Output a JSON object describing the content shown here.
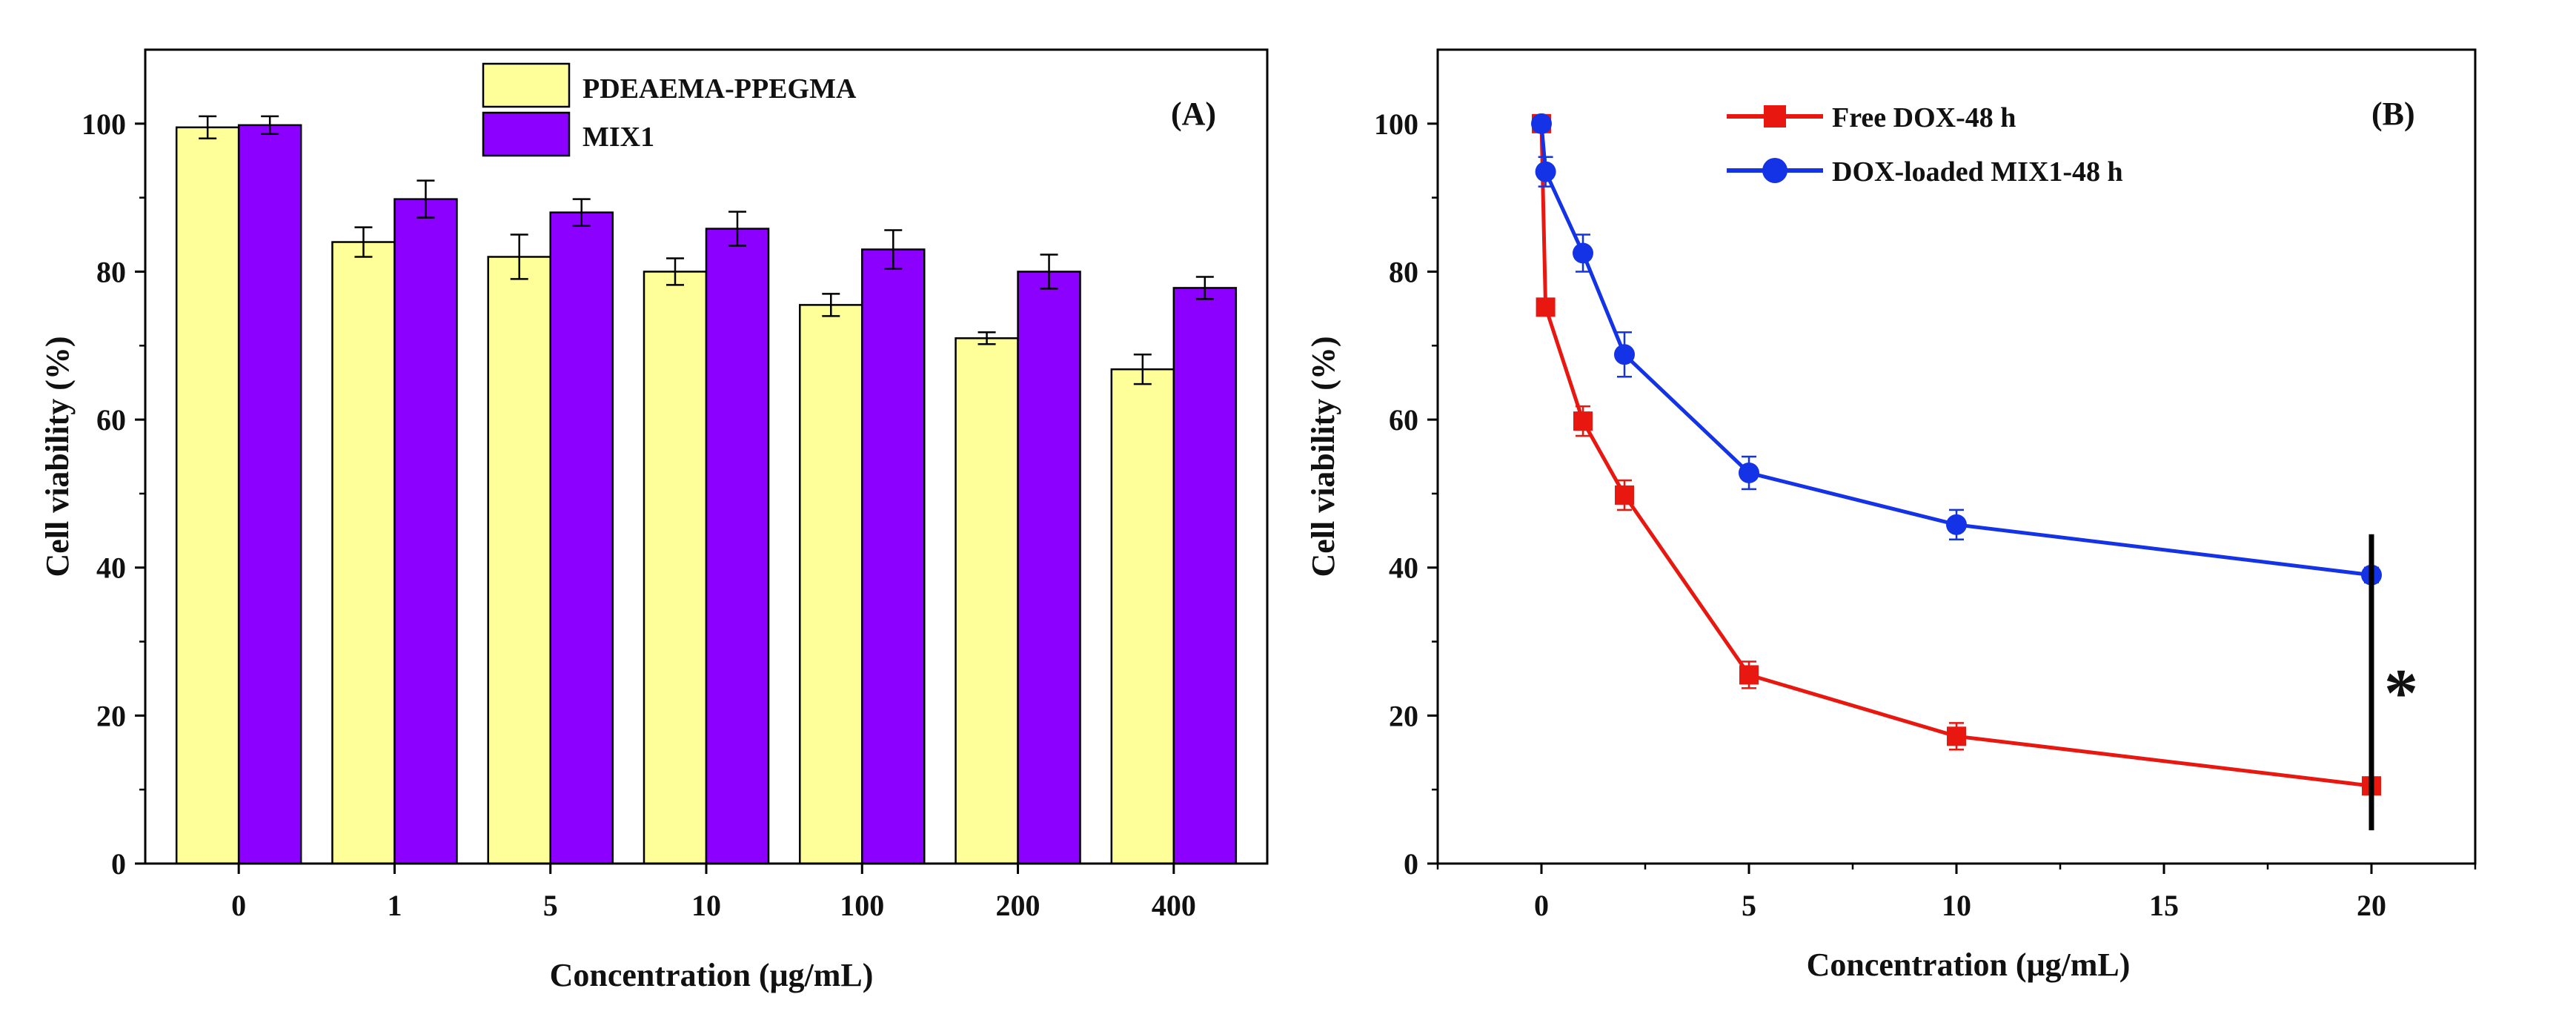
{
  "chart_data": [
    {
      "panel": "(A)",
      "type": "bar",
      "xlabel": "Concentration (μg/mL)",
      "ylabel": "Cell viability (%)",
      "ylim": [
        0,
        110
      ],
      "yticks": [
        0,
        20,
        40,
        60,
        80,
        100
      ],
      "categories": [
        "0",
        "1",
        "5",
        "10",
        "100",
        "200",
        "400"
      ],
      "legend_position": "top-center",
      "series": [
        {
          "name": "PDEAEMA-PPEGMA",
          "color": "#FFFF99",
          "values": [
            99.5,
            84.0,
            82.0,
            80.0,
            75.5,
            71.0,
            66.8
          ],
          "errors": [
            1.5,
            2.0,
            3.0,
            1.8,
            1.5,
            0.8,
            2.0
          ]
        },
        {
          "name": "MIX1",
          "color": "#8B00FF",
          "values": [
            99.8,
            89.8,
            88.0,
            85.8,
            83.0,
            80.0,
            77.8
          ],
          "errors": [
            1.2,
            2.5,
            1.8,
            2.3,
            2.6,
            2.3,
            1.5
          ]
        }
      ]
    },
    {
      "panel": "(B)",
      "type": "line",
      "xlabel": "Concentration (μg/mL)",
      "ylabel": "Cell viability (%)",
      "xlim": [
        -2.5,
        22.5
      ],
      "ylim": [
        0,
        110
      ],
      "xticks": [
        0,
        5,
        10,
        15,
        20
      ],
      "yticks": [
        0,
        20,
        40,
        60,
        80,
        100
      ],
      "legend_position": "top-center",
      "series": [
        {
          "name": "Free DOX-48 h",
          "color": "#E8170F",
          "marker": "square",
          "x": [
            0,
            0.1,
            1,
            2,
            5,
            10,
            20
          ],
          "y": [
            100,
            75.2,
            59.8,
            49.8,
            25.5,
            17.2,
            10.5
          ],
          "errors": [
            0.8,
            1.0,
            2.0,
            2.0,
            1.8,
            1.8,
            1.0
          ]
        },
        {
          "name": "DOX-loaded MIX1-48 h",
          "color": "#1433E6",
          "marker": "circle",
          "x": [
            0,
            0.1,
            1,
            2,
            5,
            10,
            20
          ],
          "y": [
            100,
            93.5,
            82.5,
            68.8,
            52.8,
            45.8,
            39.0
          ],
          "errors": [
            0.8,
            2.0,
            2.5,
            3.0,
            2.2,
            2.0,
            1.0
          ]
        }
      ],
      "annotation": {
        "text": "*",
        "x": 20,
        "y_range": [
          4.5,
          44.5
        ]
      }
    }
  ]
}
